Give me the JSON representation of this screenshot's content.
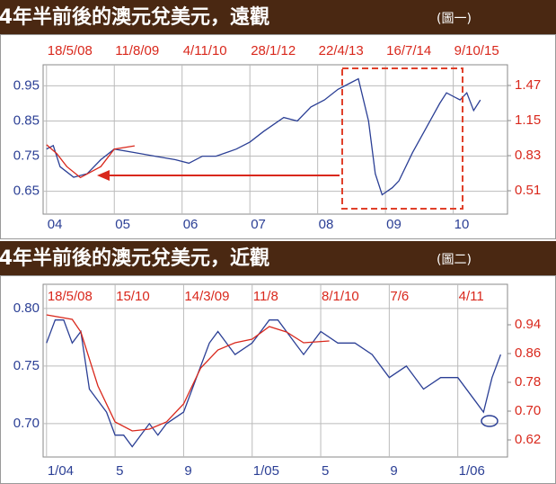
{
  "chart_data": [
    {
      "type": "line",
      "title": "4年半前後的澳元兌美元，遠觀",
      "subtitle": "(圖一)",
      "xlim": [
        2003.95,
        2010.8
      ],
      "xticks": [
        {
          "value": 2004,
          "label": "04"
        },
        {
          "value": 2005,
          "label": "05"
        },
        {
          "value": 2006,
          "label": "06"
        },
        {
          "value": 2007,
          "label": "07"
        },
        {
          "value": 2008,
          "label": "08"
        },
        {
          "value": 2009,
          "label": "09"
        },
        {
          "value": 2010,
          "label": "10"
        }
      ],
      "x2ticks": [
        {
          "value": 2004,
          "label": "18/5/08"
        },
        {
          "value": 2005,
          "label": "11/8/09"
        },
        {
          "value": 2006,
          "label": "4/11/10"
        },
        {
          "value": 2007,
          "label": "28/1/12"
        },
        {
          "value": 2008,
          "label": "22/4/13"
        },
        {
          "value": 2009,
          "label": "16/7/14"
        },
        {
          "value": 2010,
          "label": "9/10/15"
        }
      ],
      "ylim": [
        0.585,
        1.01
      ],
      "yticks": [
        0.95,
        0.85,
        0.75,
        0.65
      ],
      "y2lim": [
        0.297,
        1.659
      ],
      "y2ticks": [
        1.47,
        1.15,
        0.83,
        0.51
      ],
      "grid": true,
      "series": [
        {
          "color": "#2b3f95",
          "x": [
            2004.0,
            2004.1,
            2004.2,
            2004.4,
            2004.6,
            2004.8,
            2005.0,
            2005.3,
            2005.6,
            2005.9,
            2006.1,
            2006.3,
            2006.5,
            2006.8,
            2007.0,
            2007.2,
            2007.5,
            2007.7,
            2007.9,
            2008.1,
            2008.3,
            2008.5,
            2008.6,
            2008.75,
            2008.85,
            2008.95,
            2009.1,
            2009.2,
            2009.4,
            2009.6,
            2009.8,
            2009.9,
            2010.1,
            2010.2,
            2010.3,
            2010.4
          ],
          "values": [
            0.77,
            0.78,
            0.72,
            0.69,
            0.7,
            0.74,
            0.77,
            0.76,
            0.75,
            0.74,
            0.73,
            0.75,
            0.75,
            0.77,
            0.79,
            0.82,
            0.86,
            0.85,
            0.89,
            0.91,
            0.94,
            0.96,
            0.97,
            0.85,
            0.7,
            0.64,
            0.66,
            0.68,
            0.76,
            0.83,
            0.9,
            0.93,
            0.91,
            0.93,
            0.88,
            0.91
          ]
        },
        {
          "color": "#d9281c",
          "axis": "y2",
          "x": [
            2004.0,
            2004.15,
            2004.3,
            2004.5,
            2004.8,
            2005.0,
            2005.3
          ],
          "values": [
            0.93,
            0.85,
            0.73,
            0.63,
            0.73,
            0.89,
            0.92
          ]
        }
      ]
    },
    {
      "type": "line",
      "title": "4年半前後的澳元兌美元，近觀",
      "subtitle": "(圖二)",
      "xlim": [
        -0.2,
        26.9
      ],
      "xticks": [
        {
          "value": 0,
          "label": "1/04"
        },
        {
          "value": 4,
          "label": "5"
        },
        {
          "value": 8,
          "label": "9"
        },
        {
          "value": 12,
          "label": "1/05"
        },
        {
          "value": 16,
          "label": "5"
        },
        {
          "value": 20,
          "label": "9"
        },
        {
          "value": 24,
          "label": "1/06"
        }
      ],
      "x2ticks": [
        {
          "value": 0,
          "label": "18/5/08"
        },
        {
          "value": 4,
          "label": "15/10"
        },
        {
          "value": 8,
          "label": "14/3/09"
        },
        {
          "value": 12,
          "label": "11/8"
        },
        {
          "value": 16,
          "label": "8/1/10"
        },
        {
          "value": 20,
          "label": "7/6"
        },
        {
          "value": 24,
          "label": "4/11"
        }
      ],
      "ylim": [
        0.671,
        0.821
      ],
      "yticks": [
        {
          "value": 0.8,
          "label": "0.80"
        },
        0.75,
        {
          "value": 0.7,
          "label": "0.70"
        }
      ],
      "y2lim": [
        0.5725,
        1.0525
      ],
      "y2ticks": [
        0.94,
        0.86,
        0.78,
        {
          "value": 0.7,
          "label": "0.70"
        },
        0.62
      ],
      "grid": true,
      "series": [
        {
          "color": "#2b3f95",
          "x": [
            0,
            0.5,
            1,
            1.5,
            2,
            2.5,
            3,
            3.5,
            4,
            4.5,
            5,
            5.5,
            6,
            6.5,
            7,
            8,
            8.5,
            9,
            9.5,
            10,
            10.5,
            11,
            12,
            12.5,
            13,
            13.5,
            14,
            14.5,
            15,
            16,
            17,
            18,
            19,
            20,
            21,
            22,
            23,
            24,
            25,
            25.5,
            26,
            26.5
          ],
          "values": [
            0.77,
            0.79,
            0.79,
            0.77,
            0.78,
            0.73,
            0.72,
            0.71,
            0.69,
            0.69,
            0.68,
            0.69,
            0.7,
            0.69,
            0.7,
            0.71,
            0.73,
            0.75,
            0.77,
            0.78,
            0.77,
            0.76,
            0.77,
            0.78,
            0.79,
            0.79,
            0.78,
            0.77,
            0.76,
            0.78,
            0.77,
            0.77,
            0.76,
            0.74,
            0.75,
            0.73,
            0.74,
            0.74,
            0.72,
            0.71,
            0.74,
            0.76
          ]
        },
        {
          "color": "#d9281c",
          "axis": "y2",
          "x": [
            0,
            1.5,
            2,
            3,
            4,
            5,
            6,
            7,
            8,
            9,
            10,
            11,
            12,
            13,
            14,
            15,
            16.5
          ],
          "values": [
            0.9675,
            0.955,
            0.92,
            0.77,
            0.67,
            0.645,
            0.65,
            0.67,
            0.72,
            0.82,
            0.87,
            0.89,
            0.9,
            0.935,
            0.92,
            0.89,
            0.895
          ]
        }
      ]
    }
  ]
}
